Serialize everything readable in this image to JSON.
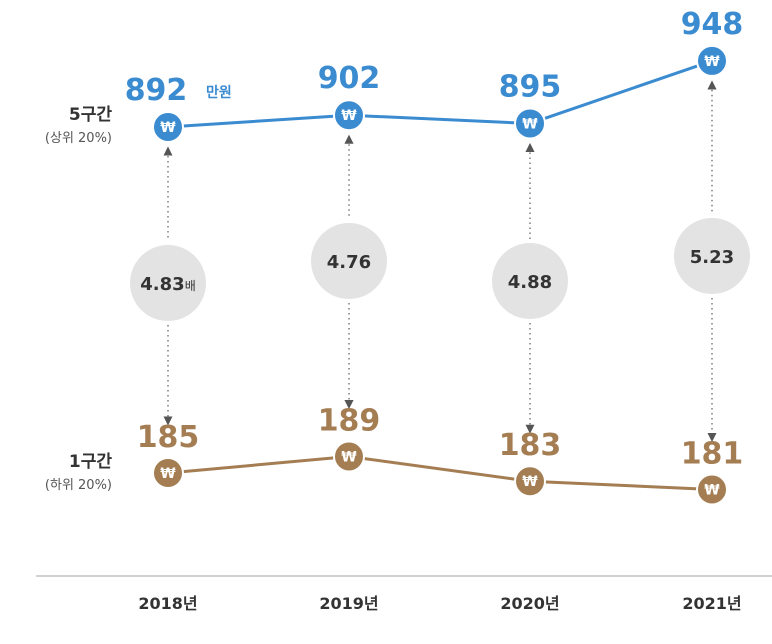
{
  "chart_data": {
    "type": "line",
    "categories": [
      "2018년",
      "2019년",
      "2020년",
      "2021년"
    ],
    "series": [
      {
        "name": "5구간",
        "subtitle": "(상위 20%)",
        "values": [
          892,
          902,
          895,
          948
        ]
      },
      {
        "name": "1구간",
        "subtitle": "(하위 20%)",
        "values": [
          185,
          189,
          183,
          181
        ]
      }
    ],
    "value_unit": "만원",
    "ratios": [
      4.83,
      4.76,
      4.88,
      5.23
    ],
    "ratio_labels": [
      "4.83",
      "4.76",
      "4.88",
      "5.23"
    ],
    "ratio_unit": "배",
    "marker_symbol": "₩",
    "colors": {
      "top": "#3a8bd0",
      "bottom": "#a47d52",
      "ratio_circle": "#e3e3e4",
      "axis": "#b7b7b7"
    }
  }
}
